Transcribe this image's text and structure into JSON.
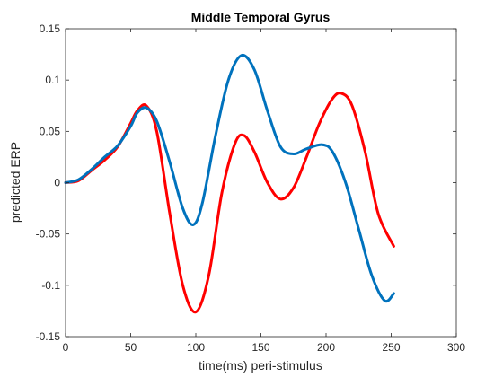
{
  "chart_data": {
    "type": "line",
    "title": "Middle Temporal Gyrus",
    "xlabel": "time(ms) peri-stimulus",
    "ylabel": "predicted ERP",
    "xlim": [
      0,
      300
    ],
    "ylim": [
      -0.15,
      0.15
    ],
    "xticks": [
      0,
      50,
      100,
      150,
      200,
      250,
      300
    ],
    "xtick_labels": [
      "0",
      "50",
      "100",
      "150",
      "200",
      "250",
      "300"
    ],
    "yticks": [
      -0.15,
      -0.1,
      -0.05,
      0,
      0.05,
      0.1,
      0.15
    ],
    "ytick_labels": [
      "-0.15",
      "-0.1",
      "-0.05",
      "0",
      "0.05",
      "0.1",
      "0.15"
    ],
    "grid": false,
    "series": [
      {
        "color": "#ff0000",
        "x": [
          0,
          10,
          20,
          30,
          40,
          50,
          55,
          62,
          70,
          80,
          90,
          100,
          110,
          120,
          130,
          137,
          145,
          155,
          165,
          175,
          185,
          195,
          205,
          212,
          220,
          230,
          240,
          252
        ],
        "y": [
          0.0,
          0.002,
          0.012,
          0.022,
          0.035,
          0.058,
          0.07,
          0.075,
          0.05,
          -0.03,
          -0.1,
          -0.126,
          -0.09,
          -0.01,
          0.038,
          0.046,
          0.03,
          0.0,
          -0.016,
          -0.005,
          0.025,
          0.058,
          0.082,
          0.087,
          0.075,
          0.03,
          -0.03,
          -0.062
        ]
      },
      {
        "color": "#0072bd",
        "x": [
          0,
          10,
          20,
          30,
          40,
          50,
          55,
          62,
          70,
          80,
          90,
          98,
          105,
          115,
          125,
          135,
          145,
          155,
          165,
          175,
          185,
          197,
          205,
          215,
          225,
          235,
          245,
          252
        ],
        "y": [
          0.0,
          0.003,
          0.013,
          0.025,
          0.036,
          0.055,
          0.068,
          0.073,
          0.06,
          0.02,
          -0.025,
          -0.041,
          -0.02,
          0.045,
          0.1,
          0.124,
          0.11,
          0.07,
          0.035,
          0.028,
          0.033,
          0.037,
          0.03,
          0.0,
          -0.045,
          -0.09,
          -0.115,
          -0.108
        ]
      }
    ]
  }
}
